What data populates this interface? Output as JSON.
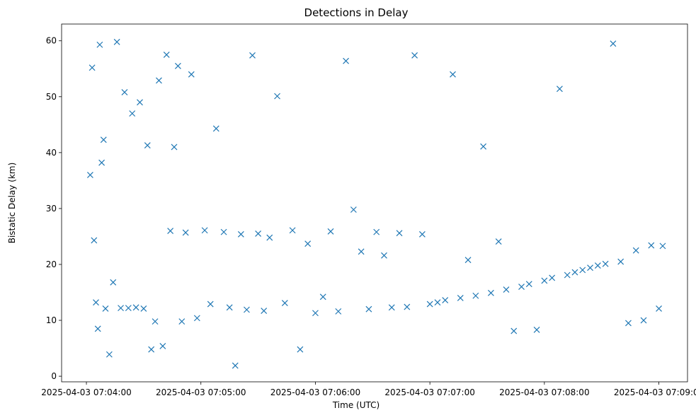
{
  "chart_data": {
    "type": "scatter",
    "title": "Detections in Delay",
    "xlabel": "Time (UTC)",
    "ylabel": "Bistatic Delay (km)",
    "x_ticks": [
      "2025-04-03 07:04:00",
      "2025-04-03 07:05:00",
      "2025-04-03 07:06:00",
      "2025-04-03 07:07:00",
      "2025-04-03 07:08:00",
      "2025-04-03 07:09:00"
    ],
    "y_ticks": [
      0,
      10,
      20,
      30,
      40,
      50,
      60
    ],
    "xlim": [
      "2025-04-03 07:03:47",
      "2025-04-03 07:09:15"
    ],
    "ylim": [
      -1,
      63
    ],
    "marker": "x",
    "color": "#1f77b4",
    "grid": false,
    "series": [
      {
        "points_note": "sampled representative detections (time as 'HH:MM:SS' on 2025-04-03, delay km)",
        "x": [
          "07:04:02",
          "07:04:03",
          "07:04:04",
          "07:04:05",
          "07:04:06",
          "07:04:07",
          "07:04:08",
          "07:04:09",
          "07:04:10",
          "07:04:12",
          "07:04:14",
          "07:04:16",
          "07:04:18",
          "07:04:20",
          "07:04:22",
          "07:04:24",
          "07:04:26",
          "07:04:28",
          "07:04:30",
          "07:04:32",
          "07:04:34",
          "07:04:36",
          "07:04:38",
          "07:04:40",
          "07:04:42",
          "07:04:44",
          "07:04:46",
          "07:04:48",
          "07:04:50",
          "07:04:52",
          "07:04:55",
          "07:04:58",
          "07:05:02",
          "07:05:05",
          "07:05:08",
          "07:05:12",
          "07:05:15",
          "07:05:18",
          "07:05:21",
          "07:05:24",
          "07:05:27",
          "07:05:30",
          "07:05:33",
          "07:05:36",
          "07:05:40",
          "07:05:44",
          "07:05:48",
          "07:05:52",
          "07:05:56",
          "07:06:00",
          "07:06:04",
          "07:06:08",
          "07:06:12",
          "07:06:16",
          "07:06:20",
          "07:06:24",
          "07:06:28",
          "07:06:32",
          "07:06:36",
          "07:06:40",
          "07:06:44",
          "07:06:48",
          "07:06:52",
          "07:06:56",
          "07:07:00",
          "07:07:04",
          "07:07:08",
          "07:07:12",
          "07:07:16",
          "07:07:20",
          "07:07:24",
          "07:07:28",
          "07:07:32",
          "07:07:36",
          "07:07:40",
          "07:07:44",
          "07:07:48",
          "07:07:52",
          "07:07:56",
          "07:08:00",
          "07:08:04",
          "07:08:08",
          "07:08:12",
          "07:08:16",
          "07:08:20",
          "07:08:24",
          "07:08:28",
          "07:08:32",
          "07:08:36",
          "07:08:40",
          "07:08:44",
          "07:08:48",
          "07:08:52",
          "07:08:56",
          "07:09:00",
          "07:09:02"
        ],
        "y": [
          36.0,
          55.2,
          24.3,
          13.2,
          8.5,
          59.3,
          38.2,
          42.3,
          12.1,
          3.9,
          16.8,
          59.8,
          12.2,
          50.8,
          12.2,
          47.0,
          12.3,
          49.0,
          12.1,
          41.3,
          4.8,
          9.8,
          52.9,
          5.4,
          57.5,
          26.0,
          41.0,
          55.5,
          9.8,
          25.7,
          54.0,
          10.4,
          26.1,
          12.9,
          44.3,
          25.8,
          12.3,
          1.9,
          25.4,
          11.9,
          57.4,
          25.5,
          11.7,
          24.8,
          50.1,
          13.1,
          26.1,
          4.8,
          23.7,
          11.3,
          14.2,
          25.9,
          11.6,
          56.4,
          29.8,
          22.3,
          12.0,
          25.8,
          21.6,
          12.3,
          25.6,
          12.4,
          57.4,
          25.4,
          12.9,
          13.2,
          13.6,
          54.0,
          14.0,
          20.8,
          14.4,
          41.1,
          14.9,
          24.1,
          15.5,
          8.1,
          16.0,
          16.5,
          8.3,
          17.1,
          17.6,
          51.4,
          18.1,
          18.6,
          19.0,
          19.4,
          19.8,
          20.1,
          59.5,
          20.5,
          9.5,
          22.5,
          10.0,
          23.4,
          12.1,
          23.3
        ]
      }
    ]
  }
}
